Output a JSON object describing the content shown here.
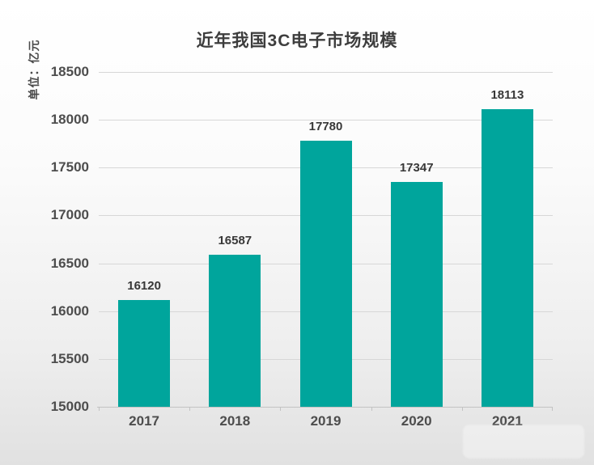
{
  "colors": {
    "bar": "#00a59c",
    "grid": "#d7d7d7",
    "axis": "#c3c3c3",
    "title_text": "#3d3d3d",
    "tick_text": "#4d4d4d",
    "value_text": "#383838",
    "background_top": "#ffffff",
    "background_bottom": "#e1e1e1"
  },
  "chart_data": {
    "type": "bar",
    "title": "近年我国3C电子市场规模",
    "ylabel": "单位：亿元",
    "xlabel": "",
    "categories": [
      "2017",
      "2018",
      "2019",
      "2020",
      "2021"
    ],
    "values": [
      16120,
      16587,
      17780,
      17347,
      18113
    ],
    "ylim": [
      15000,
      18500
    ],
    "yticks": [
      15000,
      15500,
      16000,
      16500,
      17000,
      17500,
      18000,
      18500
    ],
    "ytick_step": 500,
    "grid": true,
    "value_labels": true,
    "legend": "none"
  }
}
